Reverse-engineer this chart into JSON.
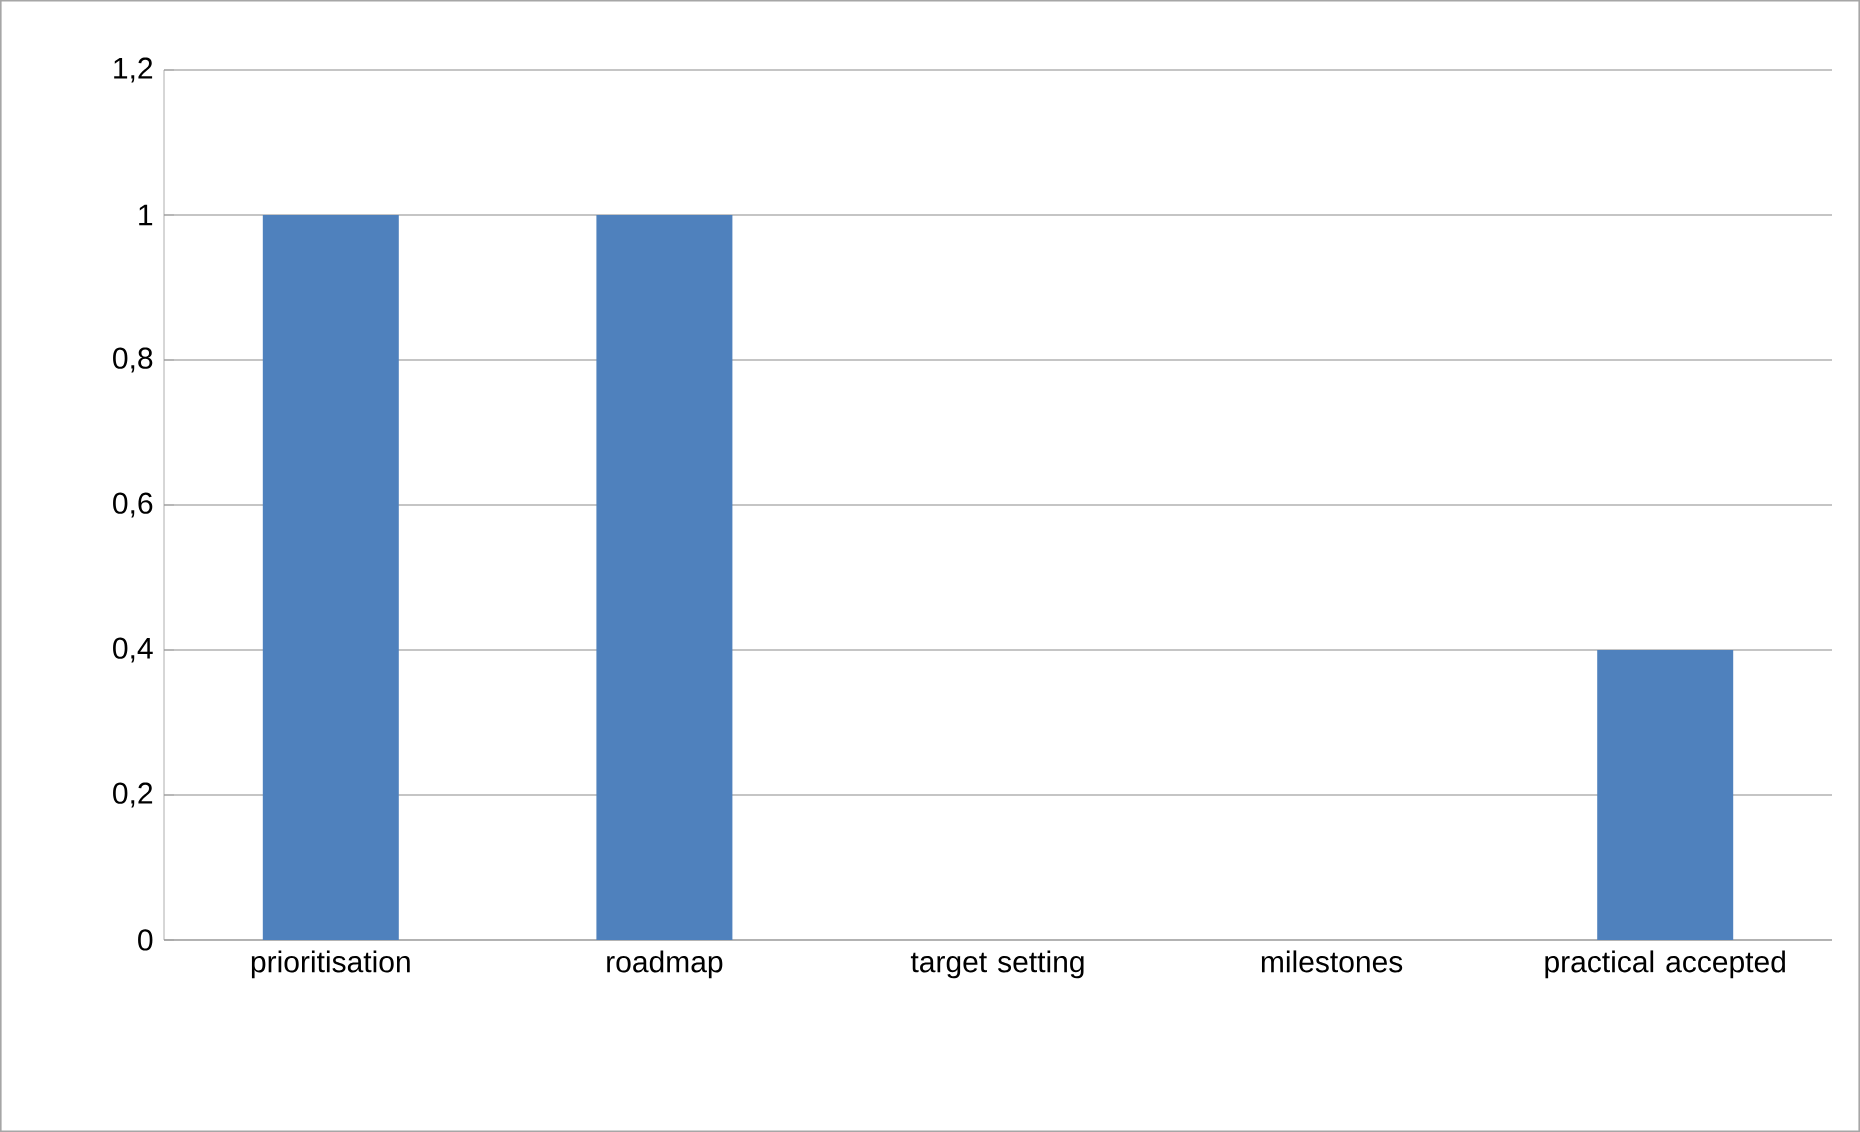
{
  "chart_data": {
    "type": "bar",
    "categories": [
      "prioritisation",
      "roadmap",
      "target setting",
      "milestones",
      "practical accepted"
    ],
    "values": [
      1,
      1,
      0,
      0,
      0.4
    ],
    "color": "#4f81bd",
    "ylim": [
      0,
      1.2
    ],
    "yticks": [
      0,
      {
        "value": 0.2,
        "label": "0,2"
      },
      {
        "value": 0.4,
        "label": "0,4"
      },
      {
        "value": 0.6,
        "label": "0,6"
      },
      {
        "value": 0.8,
        "label": "0,8"
      },
      1,
      {
        "value": 1.2,
        "label": "1,2"
      }
    ],
    "grid": "y"
  }
}
